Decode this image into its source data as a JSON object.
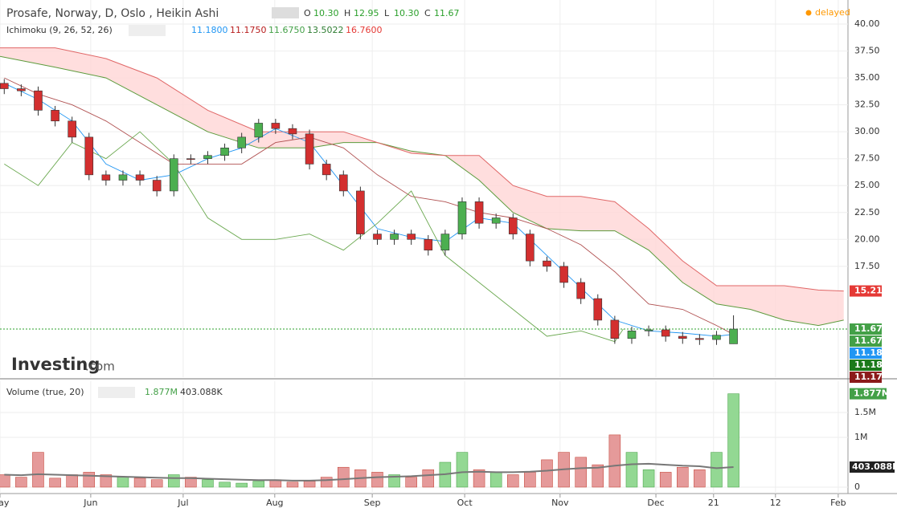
{
  "header": {
    "title": "Prosafe, Norway, D, Oslo , Heikin Ashi",
    "ohlc": [
      {
        "key": "O",
        "value": "10.30"
      },
      {
        "key": "H",
        "value": "12.95"
      },
      {
        "key": "L",
        "value": "10.30"
      },
      {
        "key": "C",
        "value": "11.67"
      }
    ],
    "status": "delayed"
  },
  "indicator": {
    "label": "Ichimoku (9, 26, 52, 26)",
    "values": [
      {
        "text": "11.1800",
        "color": "#2196f3"
      },
      {
        "text": "11.1750",
        "color": "#b71c1c"
      },
      {
        "text": "11.6750",
        "color": "#43a047"
      },
      {
        "text": "13.5022",
        "color": "#2e7d32"
      },
      {
        "text": "16.7600",
        "color": "#e53935"
      }
    ]
  },
  "volume_legend": {
    "label": "Volume (true, 20)",
    "values": [
      {
        "text": "1.877M",
        "color": "#43a047"
      },
      {
        "text": "403.088K",
        "color": "#333333"
      }
    ]
  },
  "logo": {
    "brand": "Investing",
    "suffix": ".com"
  },
  "chart_data": [
    {
      "type": "candlestick",
      "up_color": "#4caf50",
      "down_color": "#d32f2f",
      "grid": true,
      "x": [
        1,
        5,
        9,
        13,
        17,
        21,
        25,
        29,
        33,
        37,
        41,
        45,
        49,
        53,
        57,
        61,
        65,
        69,
        73,
        77,
        81,
        85,
        89,
        93,
        97,
        101,
        105,
        109,
        113,
        117,
        121,
        125,
        129,
        133,
        137,
        141,
        145,
        149,
        153,
        157,
        161,
        165,
        169,
        173
      ],
      "open": [
        34.5,
        34.0,
        33.8,
        32,
        31,
        29.5,
        26,
        25.5,
        26,
        25.5,
        24.5,
        27.5,
        27.5,
        27.8,
        28.5,
        29.5,
        30.8,
        30.3,
        29.8,
        27,
        26,
        24.5,
        20.5,
        20,
        20.5,
        20,
        19,
        20.5,
        23.5,
        21.5,
        22,
        20.5,
        18,
        17.5,
        16,
        14.5,
        12.5,
        10.8,
        11.5,
        11.6,
        11,
        10.8,
        10.7,
        10.3
      ],
      "high": [
        34.9,
        34.4,
        34.2,
        32.4,
        31.4,
        29.9,
        26.4,
        26.4,
        26.4,
        25.9,
        27.9,
        27.9,
        28.2,
        28.9,
        29.9,
        31.2,
        31.2,
        30.7,
        30.2,
        27.4,
        26.4,
        24.9,
        20.9,
        20.9,
        20.9,
        20.4,
        20.9,
        23.9,
        23.9,
        22.4,
        22.4,
        20.9,
        18.4,
        17.9,
        16.4,
        14.9,
        12.9,
        11.9,
        12.0,
        12.0,
        11.4,
        11.2,
        11.5,
        12.95
      ],
      "low": [
        33.5,
        33.3,
        31.5,
        30.5,
        29.0,
        25.5,
        25.0,
        25.0,
        25.0,
        24.0,
        24.0,
        27.0,
        27.0,
        27.3,
        28.0,
        29.0,
        29.8,
        29.3,
        26.5,
        25.5,
        24.0,
        20.0,
        19.5,
        19.5,
        19.5,
        18.5,
        18.5,
        20.0,
        21.0,
        21.0,
        20.0,
        17.5,
        17.0,
        15.5,
        14.0,
        12.0,
        10.3,
        10.3,
        11.0,
        10.5,
        10.3,
        10.2,
        10.2,
        10.3
      ],
      "close": [
        34.0,
        33.8,
        32,
        31,
        29.5,
        26,
        25.5,
        26,
        25.5,
        24.5,
        27.5,
        27.5,
        27.8,
        28.5,
        29.5,
        30.8,
        30.3,
        29.8,
        27,
        26,
        24.5,
        20.5,
        20,
        20.5,
        20,
        19,
        20.5,
        23.5,
        21.5,
        22,
        20.5,
        18,
        17.5,
        16,
        14.5,
        12.5,
        10.8,
        11.5,
        11.6,
        11,
        10.8,
        10.7,
        11.1,
        11.67
      ],
      "xlim": [
        0,
        200
      ],
      "ylim": [
        7.2,
        42.24
      ],
      "yticks": [
        {
          "value": 40,
          "label": "40.00"
        },
        {
          "value": 37.5,
          "label": "37.50"
        },
        {
          "value": 35,
          "label": "35.00"
        },
        {
          "value": 32.5,
          "label": "32.50"
        },
        {
          "value": 30,
          "label": "30.00"
        },
        {
          "value": 27.5,
          "label": "27.50"
        },
        {
          "value": 25,
          "label": "25.00"
        },
        {
          "value": 22.5,
          "label": "22.50"
        },
        {
          "value": 20,
          "label": "20.00"
        },
        {
          "value": 17.5,
          "label": "17.50"
        }
      ],
      "cloud": {
        "color": "#ffd6d6",
        "x": [
          0,
          13,
          25,
          37,
          49,
          61,
          73,
          81,
          89,
          97,
          105,
          113,
          121,
          129,
          137,
          145,
          153,
          161,
          169,
          177,
          185,
          193,
          199
        ],
        "span_a": [
          37,
          36,
          35,
          32.5,
          30,
          28.5,
          28.5,
          29,
          29,
          28.2,
          27.8,
          25.5,
          22.5,
          21,
          20.8,
          20.8,
          19,
          16,
          14,
          13.5,
          12.5,
          12,
          12.5
        ],
        "span_a_color": "#5c9b3c",
        "span_b": [
          37.8,
          37.8,
          36.8,
          35,
          32,
          30,
          30,
          30,
          29,
          28,
          27.8,
          27.8,
          25,
          24,
          24,
          23.5,
          21,
          18,
          15.7,
          15.7,
          15.7,
          15.3,
          15.21
        ],
        "span_b_color": "#e06666"
      },
      "lines": [
        {
          "color": "#2196f3",
          "x": [
            1,
            9,
            17,
            25,
            33,
            41,
            49,
            57,
            65,
            73,
            81,
            89,
            97,
            105,
            113,
            121,
            129,
            137,
            145,
            153,
            161,
            169,
            173
          ],
          "values": [
            34.5,
            33,
            31,
            27,
            25.5,
            26,
            27.5,
            28.5,
            30.3,
            29,
            25,
            21,
            20.2,
            19.8,
            22,
            21.5,
            18.5,
            15.5,
            12.5,
            11.5,
            11.3,
            11.0,
            11.18
          ]
        },
        {
          "color": "#b05050",
          "x": [
            1,
            9,
            17,
            25,
            33,
            41,
            49,
            57,
            65,
            73,
            81,
            89,
            97,
            105,
            113,
            121,
            129,
            137,
            145,
            153,
            161,
            169,
            173
          ],
          "values": [
            35,
            33.5,
            32.5,
            31,
            29,
            27,
            27,
            27,
            29,
            29.5,
            28.5,
            26,
            24,
            23.5,
            22.5,
            22,
            21,
            19.5,
            17,
            14,
            13.5,
            12,
            11.175
          ]
        },
        {
          "color": "#6aa84f",
          "x": [
            1,
            9,
            17,
            25,
            33,
            41,
            49,
            57,
            65,
            73,
            81,
            89,
            97,
            105,
            113,
            121,
            129,
            137,
            145,
            147
          ],
          "values": [
            27,
            25,
            29,
            27.5,
            30,
            27,
            22,
            20,
            20,
            20.5,
            19,
            21.5,
            24.5,
            18.5,
            16,
            13.5,
            11,
            11.5,
            10.5,
            11.67
          ]
        }
      ],
      "last_price": {
        "value": 11.67,
        "color": "#2ca02c"
      },
      "price_markers": [
        {
          "value": 15.21,
          "color": "#e53935"
        },
        {
          "value": 11.67,
          "color": "#43a047"
        },
        {
          "value": 11.67,
          "color": "#43a047"
        },
        {
          "value": 11.18,
          "color": "#2196f3"
        },
        {
          "value": 11.18,
          "color": "#1b7a1b"
        },
        {
          "value": 11.17,
          "color": "#8b1a1a"
        }
      ]
    },
    {
      "type": "bar",
      "up_color": "#e59a9a",
      "down_color": "#93d893",
      "up_stroke": "#c0392b",
      "grid": true,
      "x": [
        1,
        5,
        9,
        13,
        17,
        21,
        25,
        29,
        33,
        37,
        41,
        45,
        49,
        53,
        57,
        61,
        65,
        69,
        73,
        77,
        81,
        85,
        89,
        93,
        97,
        101,
        105,
        109,
        113,
        117,
        121,
        125,
        129,
        133,
        137,
        141,
        145,
        149,
        153,
        157,
        161,
        165,
        169,
        173
      ],
      "values": [
        250000,
        200000,
        700000,
        180000,
        250000,
        300000,
        250000,
        200000,
        180000,
        150000,
        250000,
        200000,
        150000,
        100000,
        80000,
        120000,
        150000,
        100000,
        120000,
        200000,
        400000,
        350000,
        300000,
        250000,
        200000,
        350000,
        500000,
        700000,
        350000,
        300000,
        250000,
        300000,
        550000,
        700000,
        600000,
        450000,
        1050000,
        700000,
        350000,
        300000,
        400000,
        350000,
        700000,
        1877000
      ],
      "ma": {
        "color": "#777777",
        "values": [
          250000,
          240000,
          260000,
          250000,
          240000,
          230000,
          220000,
          210000,
          200000,
          190000,
          180000,
          180000,
          170000,
          160000,
          150000,
          140000,
          140000,
          130000,
          130000,
          140000,
          160000,
          180000,
          200000,
          210000,
          220000,
          240000,
          260000,
          300000,
          310000,
          300000,
          300000,
          310000,
          330000,
          360000,
          380000,
          390000,
          430000,
          460000,
          470000,
          450000,
          430000,
          420000,
          380000,
          403088
        ]
      },
      "xlim": [
        0,
        200
      ],
      "ylim": [
        -129000,
        2129000
      ],
      "yticks": [
        0,
        {
          "value": 1000000,
          "label": "1M"
        },
        {
          "value": 1500000,
          "label": "1.5M"
        }
      ],
      "xticks": [
        {
          "value": 0,
          "label": "May"
        },
        {
          "value": 21.4,
          "label": "Jun"
        },
        {
          "value": 43.2,
          "label": "Jul"
        },
        {
          "value": 64.8,
          "label": "Aug"
        },
        {
          "value": 87.8,
          "label": "Sep"
        },
        {
          "value": 109.6,
          "label": "Oct"
        },
        {
          "value": 132.1,
          "label": "Nov"
        },
        {
          "value": 154.7,
          "label": "Dec"
        },
        {
          "value": 168.3,
          "label": "21"
        },
        {
          "value": 182.9,
          "label": "12"
        },
        {
          "value": 197.7,
          "label": "Feb"
        }
      ]
    }
  ]
}
